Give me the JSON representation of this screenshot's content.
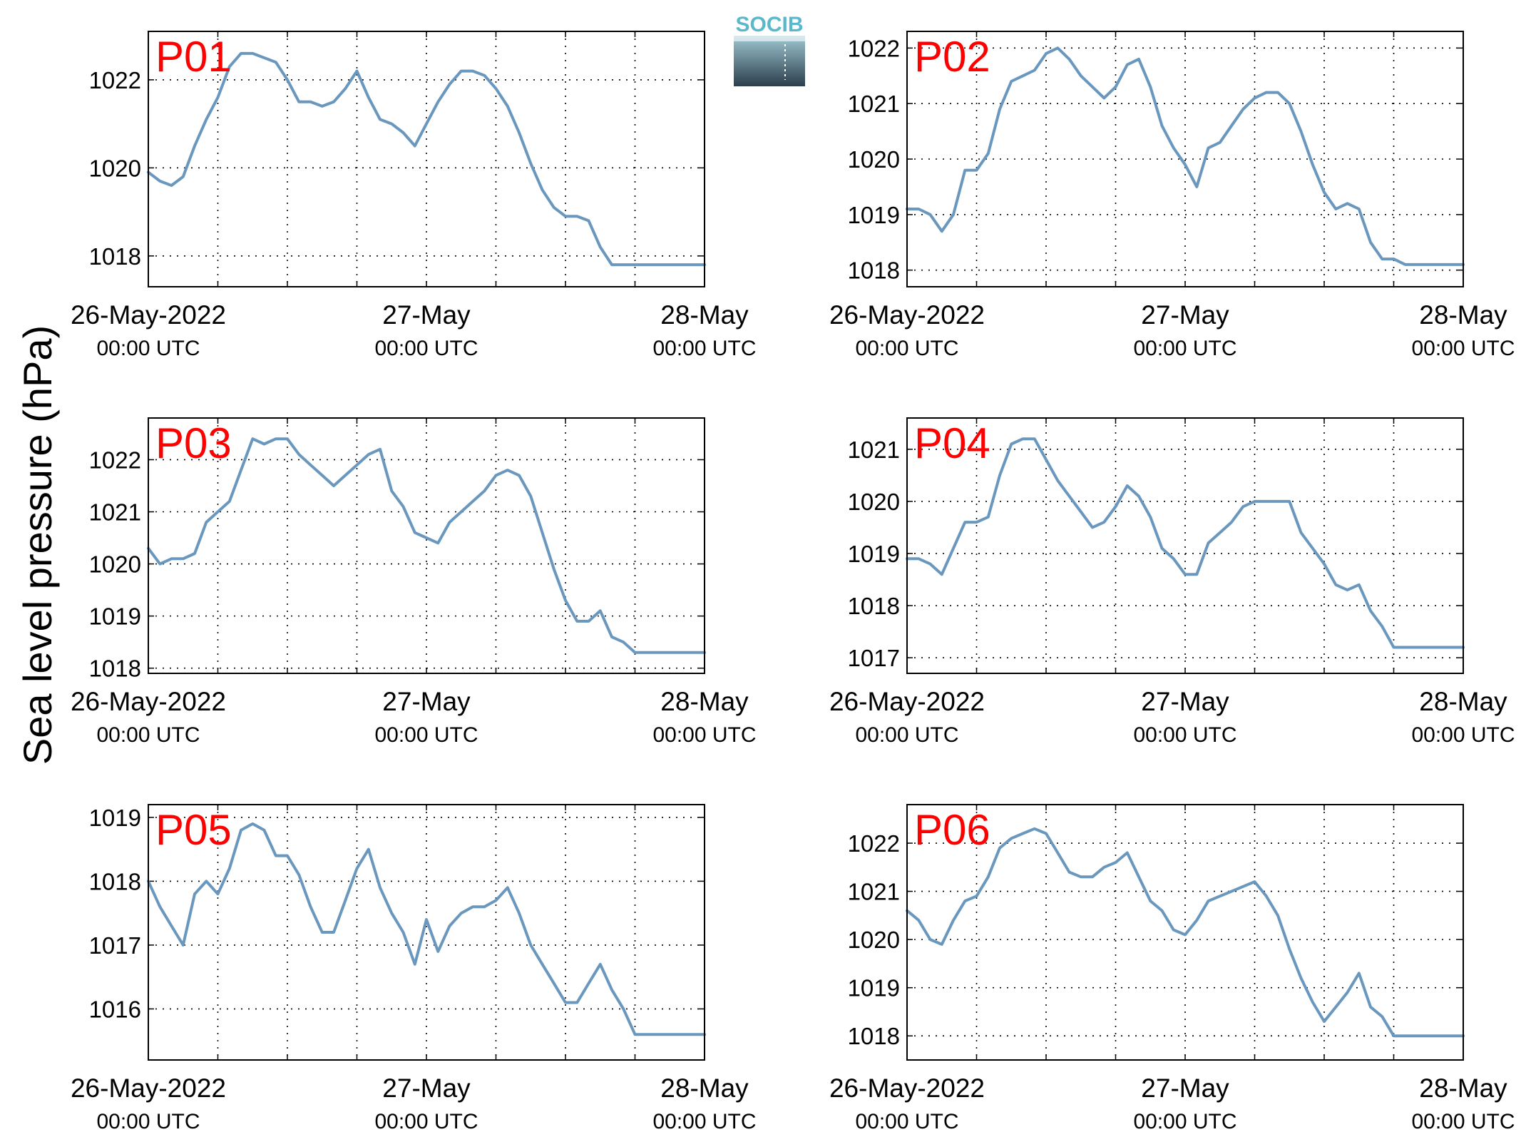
{
  "figure": {
    "ylabel": "Sea level pressure (hPa)",
    "logo_text": "SOCIB",
    "line_color": "#6a97bd",
    "label_color": "#ff0000"
  },
  "chart_data": [
    {
      "type": "line",
      "title": "P01",
      "xlabel": "",
      "ylabel": "Sea level pressure (hPa)",
      "x_tick_labels": [
        {
          "date": "26-May-2022",
          "time": "00:00 UTC"
        },
        {
          "date": "27-May",
          "time": "00:00 UTC"
        },
        {
          "date": "28-May",
          "time": "00:00 UTC"
        }
      ],
      "x_range_hours": [
        0,
        48
      ],
      "ylim": [
        1017.3,
        1023.1
      ],
      "yticks": [
        1018,
        1020,
        1022
      ],
      "grid": true,
      "series": [
        {
          "x": [
            0,
            1,
            2,
            3,
            4,
            5,
            6,
            7,
            8,
            9,
            10,
            11,
            12,
            13,
            14,
            15,
            16,
            17,
            18,
            19,
            20,
            21,
            22,
            23,
            24,
            25,
            26,
            27,
            28,
            29,
            30,
            31,
            32,
            33,
            34,
            35,
            36,
            37,
            38,
            39,
            40,
            41,
            42,
            43,
            44,
            45,
            46,
            47,
            48
          ],
          "y": [
            1019.9,
            1019.7,
            1019.6,
            1019.8,
            1020.5,
            1021.1,
            1021.6,
            1022.3,
            1022.6,
            1022.6,
            1022.5,
            1022.4,
            1022.0,
            1021.5,
            1021.5,
            1021.4,
            1021.5,
            1021.8,
            1022.2,
            1021.6,
            1021.1,
            1021.0,
            1020.8,
            1020.5,
            1021.0,
            1021.5,
            1021.9,
            1022.2,
            1022.2,
            1022.1,
            1021.8,
            1021.4,
            1020.8,
            1020.1,
            1019.5,
            1019.1,
            1018.9,
            1018.9,
            1018.8,
            1018.2,
            1017.8,
            1017.8,
            1017.8,
            1017.8,
            1017.8,
            1017.8,
            1017.8,
            1017.8,
            1017.8
          ]
        }
      ]
    },
    {
      "type": "line",
      "title": "P02",
      "xlabel": "",
      "ylabel": "Sea level pressure (hPa)",
      "x_tick_labels": [
        {
          "date": "26-May-2022",
          "time": "00:00 UTC"
        },
        {
          "date": "27-May",
          "time": "00:00 UTC"
        },
        {
          "date": "28-May",
          "time": "00:00 UTC"
        }
      ],
      "x_range_hours": [
        0,
        48
      ],
      "ylim": [
        1017.7,
        1022.3
      ],
      "yticks": [
        1018,
        1019,
        1020,
        1021,
        1022
      ],
      "grid": true,
      "series": [
        {
          "x": [
            0,
            1,
            2,
            3,
            4,
            5,
            6,
            7,
            8,
            9,
            10,
            11,
            12,
            13,
            14,
            15,
            16,
            17,
            18,
            19,
            20,
            21,
            22,
            23,
            24,
            25,
            26,
            27,
            28,
            29,
            30,
            31,
            32,
            33,
            34,
            35,
            36,
            37,
            38,
            39,
            40,
            41,
            42,
            43,
            44,
            45,
            46,
            47,
            48
          ],
          "y": [
            1019.1,
            1019.1,
            1019.0,
            1018.7,
            1019.0,
            1019.8,
            1019.8,
            1020.1,
            1020.9,
            1021.4,
            1021.5,
            1021.6,
            1021.9,
            1022.0,
            1021.8,
            1021.5,
            1021.3,
            1021.1,
            1021.3,
            1021.7,
            1021.8,
            1021.3,
            1020.6,
            1020.2,
            1019.9,
            1019.5,
            1020.2,
            1020.3,
            1020.6,
            1020.9,
            1021.1,
            1021.2,
            1021.2,
            1021.0,
            1020.5,
            1019.9,
            1019.4,
            1019.1,
            1019.2,
            1019.1,
            1018.5,
            1018.2,
            1018.2,
            1018.1,
            1018.1,
            1018.1,
            1018.1,
            1018.1,
            1018.1
          ]
        }
      ]
    },
    {
      "type": "line",
      "title": "P03",
      "xlabel": "",
      "ylabel": "Sea level pressure (hPa)",
      "x_tick_labels": [
        {
          "date": "26-May-2022",
          "time": "00:00 UTC"
        },
        {
          "date": "27-May",
          "time": "00:00 UTC"
        },
        {
          "date": "28-May",
          "time": "00:00 UTC"
        }
      ],
      "x_range_hours": [
        0,
        48
      ],
      "ylim": [
        1017.9,
        1022.8
      ],
      "yticks": [
        1018,
        1019,
        1020,
        1021,
        1022
      ],
      "grid": true,
      "series": [
        {
          "x": [
            0,
            1,
            2,
            3,
            4,
            5,
            6,
            7,
            8,
            9,
            10,
            11,
            12,
            13,
            14,
            15,
            16,
            17,
            18,
            19,
            20,
            21,
            22,
            23,
            24,
            25,
            26,
            27,
            28,
            29,
            30,
            31,
            32,
            33,
            34,
            35,
            36,
            37,
            38,
            39,
            40,
            41,
            42,
            43,
            44,
            45,
            46,
            47,
            48
          ],
          "y": [
            1020.3,
            1020.0,
            1020.1,
            1020.1,
            1020.2,
            1020.8,
            1021.0,
            1021.2,
            1021.8,
            1022.4,
            1022.3,
            1022.4,
            1022.4,
            1022.1,
            1021.9,
            1021.7,
            1021.5,
            1021.7,
            1021.9,
            1022.1,
            1022.2,
            1021.4,
            1021.1,
            1020.6,
            1020.5,
            1020.4,
            1020.8,
            1021.0,
            1021.2,
            1021.4,
            1021.7,
            1021.8,
            1021.7,
            1021.3,
            1020.6,
            1019.9,
            1019.3,
            1018.9,
            1018.9,
            1019.1,
            1018.6,
            1018.5,
            1018.3,
            1018.3,
            1018.3,
            1018.3,
            1018.3,
            1018.3,
            1018.3
          ]
        }
      ]
    },
    {
      "type": "line",
      "title": "P04",
      "xlabel": "",
      "ylabel": "Sea level pressure (hPa)",
      "x_tick_labels": [
        {
          "date": "26-May-2022",
          "time": "00:00 UTC"
        },
        {
          "date": "27-May",
          "time": "00:00 UTC"
        },
        {
          "date": "28-May",
          "time": "00:00 UTC"
        }
      ],
      "x_range_hours": [
        0,
        48
      ],
      "ylim": [
        1016.7,
        1021.6
      ],
      "yticks": [
        1017,
        1018,
        1019,
        1020,
        1021
      ],
      "grid": true,
      "series": [
        {
          "x": [
            0,
            1,
            2,
            3,
            4,
            5,
            6,
            7,
            8,
            9,
            10,
            11,
            12,
            13,
            14,
            15,
            16,
            17,
            18,
            19,
            20,
            21,
            22,
            23,
            24,
            25,
            26,
            27,
            28,
            29,
            30,
            31,
            32,
            33,
            34,
            35,
            36,
            37,
            38,
            39,
            40,
            41,
            42,
            43,
            44,
            45,
            46,
            47,
            48
          ],
          "y": [
            1018.9,
            1018.9,
            1018.8,
            1018.6,
            1019.1,
            1019.6,
            1019.6,
            1019.7,
            1020.5,
            1021.1,
            1021.2,
            1021.2,
            1020.8,
            1020.4,
            1020.1,
            1019.8,
            1019.5,
            1019.6,
            1019.9,
            1020.3,
            1020.1,
            1019.7,
            1019.1,
            1018.9,
            1018.6,
            1018.6,
            1019.2,
            1019.4,
            1019.6,
            1019.9,
            1020.0,
            1020.0,
            1020.0,
            1020.0,
            1019.4,
            1019.1,
            1018.8,
            1018.4,
            1018.3,
            1018.4,
            1017.9,
            1017.6,
            1017.2,
            1017.2,
            1017.2,
            1017.2,
            1017.2,
            1017.2,
            1017.2
          ]
        }
      ]
    },
    {
      "type": "line",
      "title": "P05",
      "xlabel": "",
      "ylabel": "Sea level pressure (hPa)",
      "x_tick_labels": [
        {
          "date": "26-May-2022",
          "time": "00:00 UTC"
        },
        {
          "date": "27-May",
          "time": "00:00 UTC"
        },
        {
          "date": "28-May",
          "time": "00:00 UTC"
        }
      ],
      "x_range_hours": [
        0,
        48
      ],
      "ylim": [
        1015.2,
        1019.2
      ],
      "yticks": [
        1016,
        1017,
        1018,
        1019
      ],
      "grid": true,
      "series": [
        {
          "x": [
            0,
            1,
            2,
            3,
            4,
            5,
            6,
            7,
            8,
            9,
            10,
            11,
            12,
            13,
            14,
            15,
            16,
            17,
            18,
            19,
            20,
            21,
            22,
            23,
            24,
            25,
            26,
            27,
            28,
            29,
            30,
            31,
            32,
            33,
            34,
            35,
            36,
            37,
            38,
            39,
            40,
            41,
            42,
            43,
            44,
            45,
            46,
            47,
            48
          ],
          "y": [
            1018.0,
            1017.6,
            1017.3,
            1017.0,
            1017.8,
            1018.0,
            1017.8,
            1018.2,
            1018.8,
            1018.9,
            1018.8,
            1018.4,
            1018.4,
            1018.1,
            1017.6,
            1017.2,
            1017.2,
            1017.7,
            1018.2,
            1018.5,
            1017.9,
            1017.5,
            1017.2,
            1016.7,
            1017.4,
            1016.9,
            1017.3,
            1017.5,
            1017.6,
            1017.6,
            1017.7,
            1017.9,
            1017.5,
            1017.0,
            1016.7,
            1016.4,
            1016.1,
            1016.1,
            1016.4,
            1016.7,
            1016.3,
            1016.0,
            1015.6,
            1015.6,
            1015.6,
            1015.6,
            1015.6,
            1015.6,
            1015.6
          ]
        }
      ]
    },
    {
      "type": "line",
      "title": "P06",
      "xlabel": "",
      "ylabel": "Sea level pressure (hPa)",
      "x_tick_labels": [
        {
          "date": "26-May-2022",
          "time": "00:00 UTC"
        },
        {
          "date": "27-May",
          "time": "00:00 UTC"
        },
        {
          "date": "28-May",
          "time": "00:00 UTC"
        }
      ],
      "x_range_hours": [
        0,
        48
      ],
      "ylim": [
        1017.5,
        1022.8
      ],
      "yticks": [
        1018,
        1019,
        1020,
        1021,
        1022
      ],
      "grid": true,
      "series": [
        {
          "x": [
            0,
            1,
            2,
            3,
            4,
            5,
            6,
            7,
            8,
            9,
            10,
            11,
            12,
            13,
            14,
            15,
            16,
            17,
            18,
            19,
            20,
            21,
            22,
            23,
            24,
            25,
            26,
            27,
            28,
            29,
            30,
            31,
            32,
            33,
            34,
            35,
            36,
            37,
            38,
            39,
            40,
            41,
            42,
            43,
            44,
            45,
            46,
            47,
            48
          ],
          "y": [
            1020.6,
            1020.4,
            1020.0,
            1019.9,
            1020.4,
            1020.8,
            1020.9,
            1021.3,
            1021.9,
            1022.1,
            1022.2,
            1022.3,
            1022.2,
            1021.8,
            1021.4,
            1021.3,
            1021.3,
            1021.5,
            1021.6,
            1021.8,
            1021.3,
            1020.8,
            1020.6,
            1020.2,
            1020.1,
            1020.4,
            1020.8,
            1020.9,
            1021.0,
            1021.1,
            1021.2,
            1020.9,
            1020.5,
            1019.8,
            1019.2,
            1018.7,
            1018.3,
            1018.6,
            1018.9,
            1019.3,
            1018.6,
            1018.4,
            1018.0,
            1018.0,
            1018.0,
            1018.0,
            1018.0,
            1018.0,
            1018.0
          ]
        }
      ]
    }
  ]
}
